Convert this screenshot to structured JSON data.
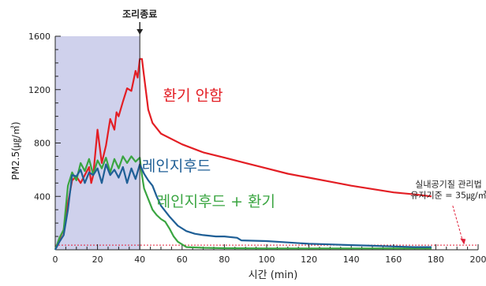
{
  "chart_data": {
    "type": "line",
    "xlabel": "시간 (min)",
    "ylabel": "PM2.5(㎍/㎥)",
    "xlim": [
      0,
      200
    ],
    "ylim": [
      0,
      1600
    ],
    "xticks": [
      0,
      20,
      40,
      60,
      80,
      100,
      120,
      140,
      160,
      180,
      200
    ],
    "yticks": [
      400,
      800,
      1200,
      1600
    ],
    "cooking_period": [
      0,
      40
    ],
    "cooking_end_x": 40,
    "cooking_end_label": "조리종료",
    "threshold": {
      "value": 35,
      "label_lines": [
        "실내공기질 관리법",
        "유지기준 = 35㎍/㎥"
      ],
      "color": "#e0203a"
    },
    "series": [
      {
        "name": "환기 안함",
        "color": "#e31e24",
        "x": [
          0,
          2,
          4,
          6,
          8,
          10,
          12,
          14,
          16,
          17,
          18,
          20,
          22,
          24,
          26,
          28,
          29,
          30,
          32,
          34,
          36,
          38,
          39,
          40,
          41,
          42,
          44,
          46,
          50,
          60,
          70,
          80,
          90,
          100,
          110,
          120,
          130,
          140,
          150,
          160,
          170,
          178
        ],
        "y": [
          0,
          80,
          150,
          350,
          520,
          550,
          500,
          560,
          620,
          500,
          560,
          900,
          650,
          780,
          980,
          900,
          1030,
          1000,
          1110,
          1210,
          1190,
          1340,
          1290,
          1430,
          1430,
          1300,
          1050,
          950,
          870,
          790,
          730,
          690,
          650,
          610,
          570,
          540,
          510,
          480,
          455,
          430,
          415,
          400
        ]
      },
      {
        "name": "레인지후드",
        "color": "#1f5f96",
        "x": [
          0,
          2,
          4,
          6,
          8,
          10,
          12,
          14,
          16,
          18,
          20,
          22,
          24,
          26,
          28,
          30,
          32,
          34,
          36,
          38,
          40,
          42,
          44,
          46,
          48,
          50,
          54,
          58,
          62,
          66,
          70,
          76,
          80,
          86,
          88,
          100,
          110,
          120,
          130,
          140,
          150,
          160,
          170,
          178
        ],
        "y": [
          0,
          60,
          110,
          300,
          560,
          550,
          600,
          500,
          580,
          560,
          610,
          500,
          640,
          560,
          600,
          540,
          620,
          500,
          610,
          530,
          640,
          570,
          520,
          480,
          400,
          330,
          250,
          180,
          140,
          120,
          110,
          100,
          100,
          90,
          70,
          65,
          55,
          45,
          40,
          35,
          30,
          25,
          20,
          20
        ]
      },
      {
        "name": "레인지후드 + 환기",
        "color": "#3aa541",
        "x": [
          0,
          2,
          4,
          6,
          8,
          10,
          12,
          14,
          16,
          18,
          20,
          22,
          24,
          26,
          28,
          30,
          32,
          34,
          36,
          38,
          40,
          41,
          42,
          44,
          46,
          48,
          50,
          52,
          54,
          56,
          58,
          60,
          62,
          70,
          80,
          100,
          120,
          140,
          160,
          178
        ],
        "y": [
          0,
          90,
          150,
          480,
          580,
          520,
          650,
          590,
          680,
          560,
          670,
          610,
          690,
          580,
          680,
          610,
          700,
          650,
          700,
          660,
          690,
          560,
          460,
          380,
          300,
          260,
          230,
          210,
          160,
          100,
          60,
          40,
          20,
          15,
          12,
          10,
          10,
          10,
          10,
          10
        ]
      }
    ]
  }
}
